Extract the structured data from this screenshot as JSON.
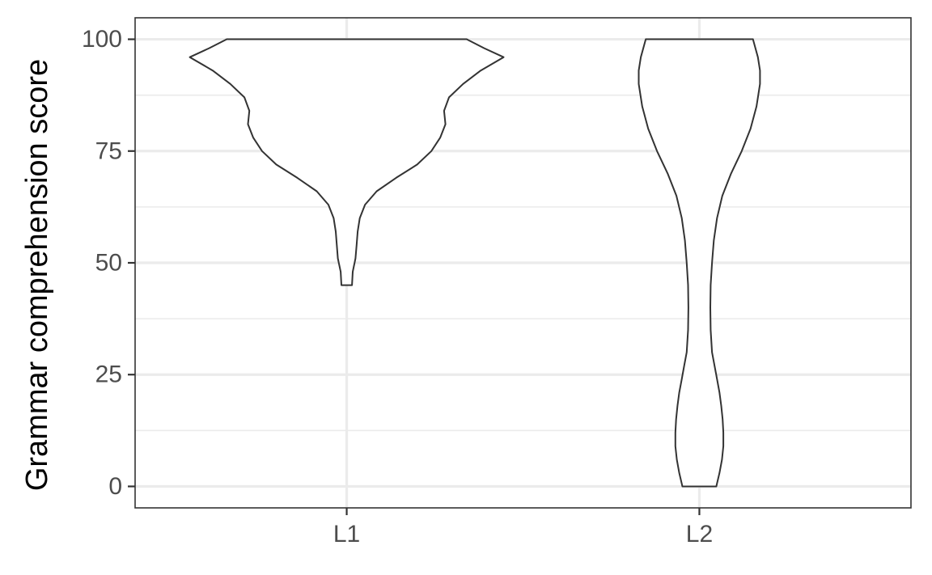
{
  "chart_data": {
    "type": "violin",
    "title": "",
    "xlabel": "",
    "ylabel": "Grammar comprehension score",
    "ylim": [
      -4.8,
      104.8
    ],
    "y_ticks": [
      0,
      25,
      50,
      75,
      100
    ],
    "y_tick_labels": [
      "0",
      "25",
      "50",
      "75",
      "100"
    ],
    "y_minor_ticks": [
      12.5,
      37.5,
      62.5,
      87.5
    ],
    "categories": [
      "L1",
      "L2"
    ],
    "grid": true,
    "series": [
      {
        "category": "L1",
        "density_half_width": [
          [
            45,
            0.015
          ],
          [
            48,
            0.017
          ],
          [
            51,
            0.025
          ],
          [
            54,
            0.028
          ],
          [
            57,
            0.031
          ],
          [
            60,
            0.037
          ],
          [
            63,
            0.052
          ],
          [
            66,
            0.085
          ],
          [
            69,
            0.14
          ],
          [
            72,
            0.2
          ],
          [
            75,
            0.24
          ],
          [
            78,
            0.265
          ],
          [
            81,
            0.28
          ],
          [
            84,
            0.276
          ],
          [
            87,
            0.29
          ],
          [
            90,
            0.33
          ],
          [
            93,
            0.38
          ],
          [
            96,
            0.445
          ],
          [
            98,
            0.39
          ],
          [
            100,
            0.34
          ]
        ]
      },
      {
        "category": "L2",
        "density_half_width": [
          [
            0,
            0.048
          ],
          [
            3,
            0.057
          ],
          [
            6,
            0.064
          ],
          [
            9,
            0.068
          ],
          [
            12,
            0.068
          ],
          [
            15,
            0.066
          ],
          [
            18,
            0.062
          ],
          [
            21,
            0.057
          ],
          [
            24,
            0.05
          ],
          [
            27,
            0.043
          ],
          [
            30,
            0.036
          ],
          [
            35,
            0.032
          ],
          [
            40,
            0.031
          ],
          [
            45,
            0.032
          ],
          [
            50,
            0.036
          ],
          [
            55,
            0.041
          ],
          [
            60,
            0.05
          ],
          [
            65,
            0.065
          ],
          [
            70,
            0.09
          ],
          [
            75,
            0.12
          ],
          [
            80,
            0.145
          ],
          [
            85,
            0.162
          ],
          [
            90,
            0.172
          ],
          [
            93,
            0.172
          ],
          [
            96,
            0.166
          ],
          [
            100,
            0.152
          ]
        ]
      }
    ]
  }
}
